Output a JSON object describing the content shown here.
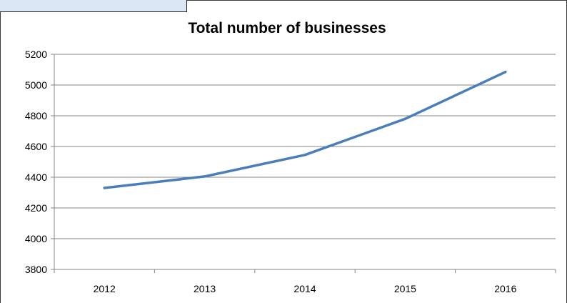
{
  "colors": {
    "line": "#4a7ebb",
    "grid": "#868686",
    "axis": "#868686",
    "header_cell": "#dbe7f5"
  },
  "chart_data": {
    "type": "line",
    "title": "Total number of businesses",
    "xlabel": "",
    "ylabel": "",
    "categories": [
      "2012",
      "2013",
      "2014",
      "2015",
      "2016"
    ],
    "series": [
      {
        "values": [
          4330,
          4405,
          4545,
          4780,
          5085
        ]
      }
    ],
    "ylim": [
      3800,
      5200
    ],
    "yticks": [
      "3800",
      "4000",
      "4200",
      "4400",
      "4600",
      "4800",
      "5000",
      "5200"
    ],
    "grid": true,
    "legend": "none"
  }
}
